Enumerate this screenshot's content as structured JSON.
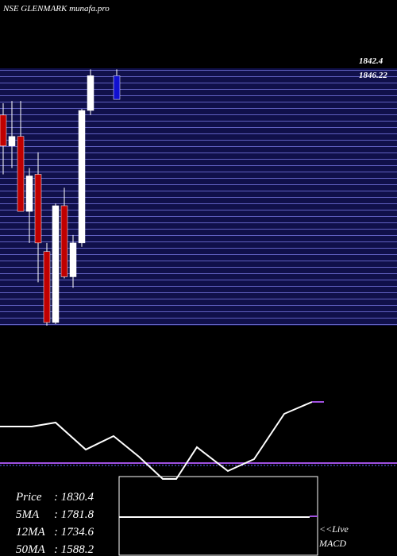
{
  "chart_data": {
    "type": "candlestick",
    "title": "NSE GLENMARK munafa.pro",
    "price_labels": [
      "1842.4",
      "1846.22"
    ],
    "ylim": [
      1703,
      1848
    ],
    "candles": [
      {
        "open": 1821.5,
        "high": 1828.2,
        "low": 1787.9,
        "close": 1804.0,
        "color": "#c00000"
      },
      {
        "open": 1804.0,
        "high": 1829.5,
        "low": 1791.5,
        "close": 1809.4,
        "color": "#ffffff"
      },
      {
        "open": 1809.4,
        "high": 1829.5,
        "low": 1766.9,
        "close": 1766.9,
        "color": "#c00000"
      },
      {
        "open": 1766.9,
        "high": 1791.5,
        "low": 1749.0,
        "close": 1787.0,
        "color": "#ffffff"
      },
      {
        "open": 1787.9,
        "high": 1800.4,
        "low": 1726.7,
        "close": 1749.0,
        "color": "#c00000"
      },
      {
        "open": 1744.1,
        "high": 1749.0,
        "low": 1702.1,
        "close": 1703.9,
        "color": "#c00000"
      },
      {
        "open": 1703.9,
        "high": 1771.4,
        "low": 1703.0,
        "close": 1770.1,
        "color": "#ffffff"
      },
      {
        "open": 1770.1,
        "high": 1780.3,
        "low": 1728.9,
        "close": 1729.8,
        "color": "#c00000"
      },
      {
        "open": 1729.8,
        "high": 1753.5,
        "low": 1723.6,
        "close": 1749.0,
        "color": "#ffffff"
      },
      {
        "open": 1749.0,
        "high": 1825.0,
        "low": 1746.8,
        "close": 1824.1,
        "color": "#ffffff"
      },
      {
        "open": 1824.1,
        "high": 1847.4,
        "low": 1821.5,
        "close": 1843.8,
        "color": "#ffffff"
      },
      {
        "open": 1843.8,
        "high": 1847.4,
        "low": 1830.3,
        "close": 1830.4,
        "color": "#1010d0"
      }
    ],
    "indicator": {
      "color": "#ffffff",
      "ylim": [
        0,
        120
      ],
      "x": [
        0,
        40,
        70,
        108,
        143,
        175,
        205,
        222,
        248,
        287,
        320,
        358,
        393
      ],
      "values": [
        63,
        63,
        68,
        34,
        51,
        25,
        -3,
        -3,
        37,
        7,
        22,
        79,
        94
      ]
    },
    "info": [
      {
        "label": "Price",
        "value": 1830.4
      },
      {
        "label": "5MA",
        "value": 1781.8
      },
      {
        "label": "12MA",
        "value": 1734.6
      },
      {
        "label": "50MA",
        "value": 1588.2
      }
    ],
    "live_text": [
      "<<Live",
      "MACD"
    ]
  }
}
